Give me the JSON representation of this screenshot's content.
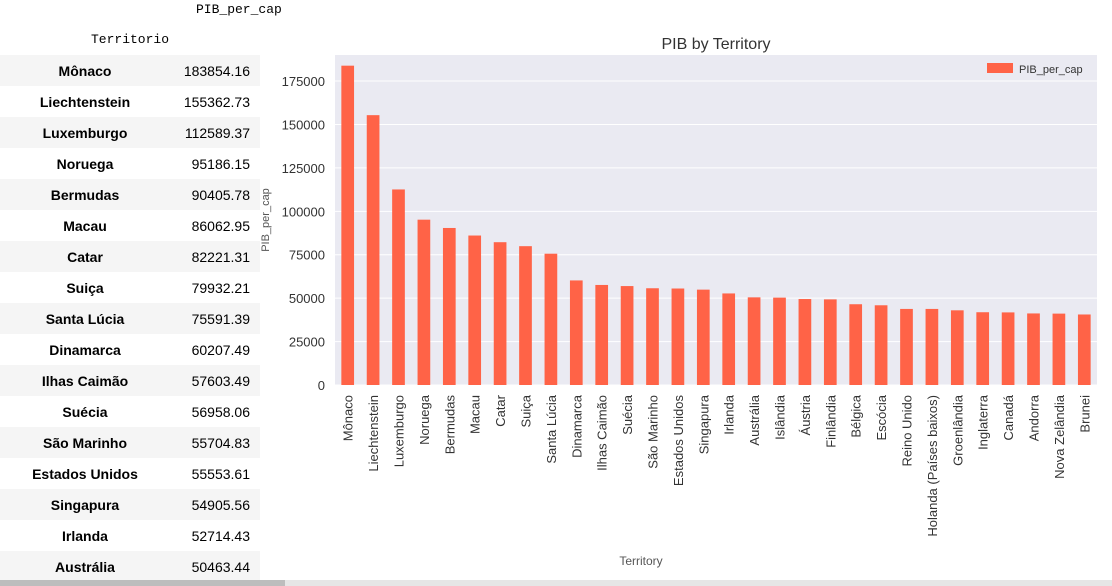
{
  "table": {
    "value_header": "PIB_per_cap",
    "index_header": "Territorio",
    "rows": [
      {
        "name": "Mônaco",
        "value": "183854.16"
      },
      {
        "name": "Liechtenstein",
        "value": "155362.73"
      },
      {
        "name": "Luxemburgo",
        "value": "112589.37"
      },
      {
        "name": "Noruega",
        "value": "95186.15"
      },
      {
        "name": "Bermudas",
        "value": "90405.78"
      },
      {
        "name": "Macau",
        "value": "86062.95"
      },
      {
        "name": "Catar",
        "value": "82221.31"
      },
      {
        "name": "Suiça",
        "value": "79932.21"
      },
      {
        "name": "Santa Lúcia",
        "value": "75591.39"
      },
      {
        "name": "Dinamarca",
        "value": "60207.49"
      },
      {
        "name": "Ilhas Caimão",
        "value": "57603.49"
      },
      {
        "name": "Suécia",
        "value": "56958.06"
      },
      {
        "name": "São Marinho",
        "value": "55704.83"
      },
      {
        "name": "Estados Unidos",
        "value": "55553.61"
      },
      {
        "name": "Singapura",
        "value": "54905.56"
      },
      {
        "name": "Irlanda",
        "value": "52714.43"
      },
      {
        "name": "Austrália",
        "value": "50463.44"
      }
    ]
  },
  "chart_data": {
    "type": "bar",
    "title": "PIB by Territory",
    "xlabel": "Territory",
    "ylabel": "PIB_per_cap",
    "ylim": [
      0,
      190000
    ],
    "yticks": [
      0,
      25000,
      50000,
      75000,
      100000,
      125000,
      150000,
      175000
    ],
    "grid": true,
    "legend_position": "top-right",
    "bar_color": "#ff6347",
    "background_color": "#eaeaf2",
    "categories": [
      "Mônaco",
      "Liechtenstein",
      "Luxemburgo",
      "Noruega",
      "Bermudas",
      "Macau",
      "Catar",
      "Suiça",
      "Santa Lúcia",
      "Dinamarca",
      "Ilhas Caimão",
      "Suécia",
      "São Marinho",
      "Estados Unidos",
      "Singapura",
      "Irlanda",
      "Austrália",
      "Islândia",
      "Áustria",
      "Finlândia",
      "Bélgica",
      "Escócia",
      "Reino Unido",
      "Holanda (Países baixos)",
      "Groenlândia",
      "Inglaterra",
      "Canadá",
      "Andorra",
      "Nova Zelândia",
      "Brunei"
    ],
    "series": [
      {
        "name": "PIB_per_cap",
        "values": [
          183854.16,
          155362.73,
          112589.37,
          95186.15,
          90405.78,
          86062.95,
          82221.31,
          79932.21,
          75591.39,
          60207.49,
          57603.49,
          56958.06,
          55704.83,
          55553.61,
          54905.56,
          52714.43,
          50463.44,
          50300,
          49500,
          49300,
          46500,
          45900,
          43800,
          43800,
          43000,
          41900,
          41800,
          41200,
          41100,
          40600
        ]
      }
    ]
  }
}
